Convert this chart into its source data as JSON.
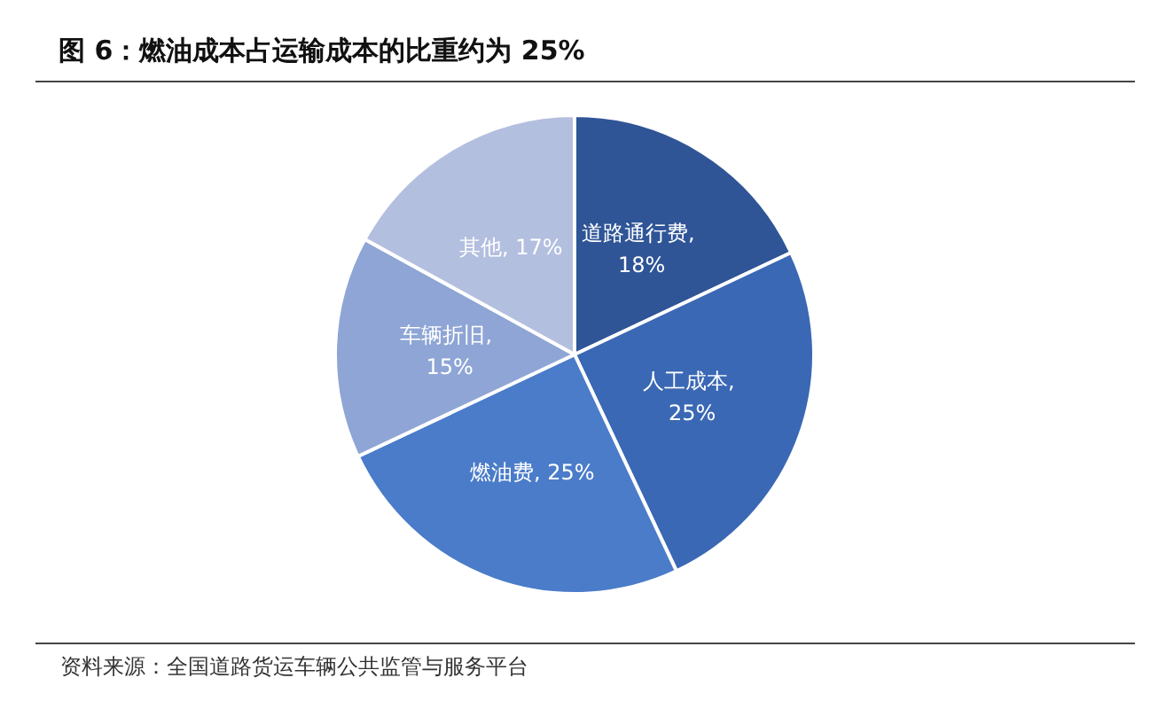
{
  "chart_data": {
    "type": "pie",
    "title": "图 6：燃油成本占运输成本的比重约为 25%",
    "categories": [
      "道路通行费",
      "人工成本",
      "燃油费",
      "车辆折旧",
      "其他"
    ],
    "values": [
      18,
      25,
      25,
      15,
      17
    ],
    "colors": [
      "#2f5597",
      "#3a68b4",
      "#4a7cc9",
      "#8ea5d5",
      "#b3bfdf"
    ],
    "value_labels": [
      ", 18%",
      ", 25%",
      ", 25%",
      ", 15%",
      ", 17%"
    ],
    "legend": false,
    "annotations": [
      "资料来源：全国道路货运车辆公共监管与服务平台"
    ]
  }
}
